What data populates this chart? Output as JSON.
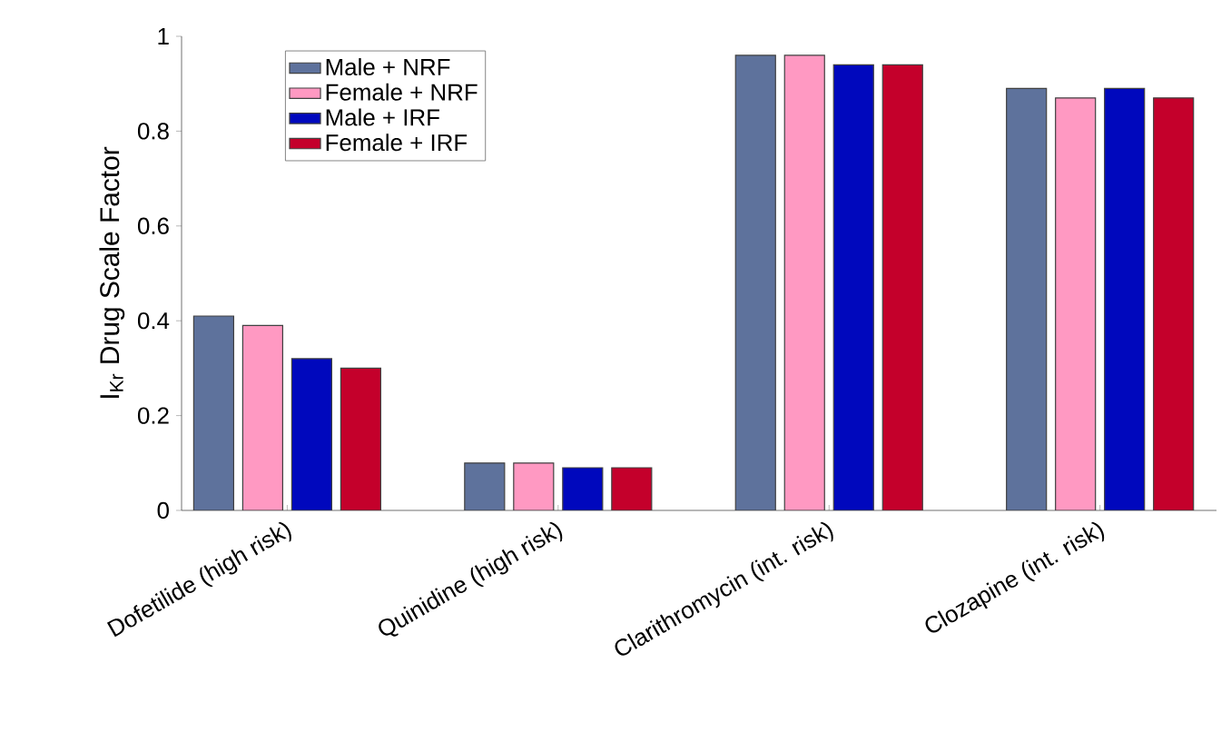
{
  "chart_data": {
    "type": "bar",
    "ylabel": "I$_{Kr}$ Drug Scale Factor",
    "categories": [
      "Dofetilide (high risk)",
      "Quinidine (high risk)",
      "Clarithromycin (int. risk)",
      "Clozapine (int. risk)"
    ],
    "series": [
      {
        "name": "Male + NRF",
        "color": "#5e729c",
        "values": [
          0.41,
          0.1,
          0.96,
          0.89
        ]
      },
      {
        "name": "Female + NRF",
        "color": "#ff99c2",
        "values": [
          0.39,
          0.1,
          0.96,
          0.87
        ]
      },
      {
        "name": "Male + IRF",
        "color": "#0008bd",
        "values": [
          0.32,
          0.09,
          0.94,
          0.89
        ]
      },
      {
        "name": "Female + IRF",
        "color": "#c4002b",
        "values": [
          0.3,
          0.09,
          0.94,
          0.87
        ]
      }
    ],
    "ylim": [
      0,
      1
    ],
    "yticks": [
      0,
      0.2,
      0.4,
      0.6,
      0.8,
      1
    ],
    "legend": "top left",
    "grid": false
  }
}
